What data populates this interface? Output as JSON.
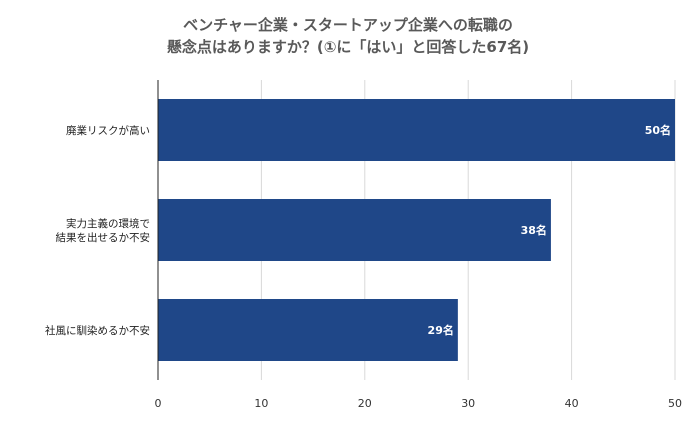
{
  "chart_data": {
    "type": "bar",
    "orientation": "horizontal",
    "title_lines": [
      "ベンチャー企業・スタートアップ企業への転職の",
      "懸念点はありますか？(①に「はい」と回答した67名)"
    ],
    "categories": [
      [
        "廃業リスクが高い"
      ],
      [
        "実力主義の環境で",
        "結果を出せるか不安"
      ],
      [
        "社風に馴染めるか不安"
      ]
    ],
    "values": [
      50,
      38,
      29
    ],
    "data_labels": [
      "50名",
      "38名",
      "29名"
    ],
    "xlim": [
      0,
      50
    ],
    "xticks": [
      0,
      10,
      20,
      30,
      40,
      50
    ],
    "grid": true,
    "bar_color": "#1f4788",
    "grid_color": "#d9d9d9",
    "axis_color": "#222222",
    "title_color": "#595959"
  }
}
